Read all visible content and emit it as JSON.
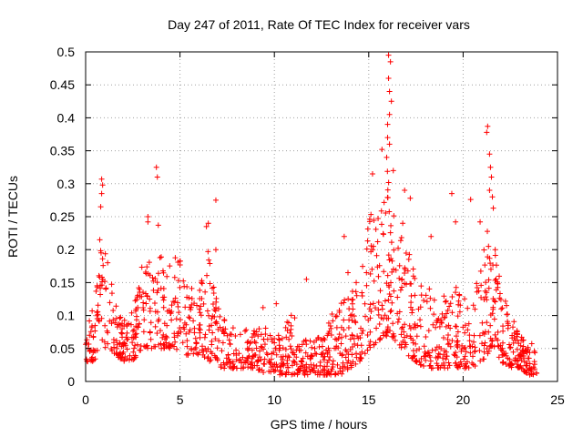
{
  "chart_data": {
    "type": "scatter",
    "title": "Day 247 of 2011, Rate Of TEC Index for receiver vars",
    "xlabel": "GPS time / hours",
    "ylabel": "ROTI / TECUs",
    "xlim": [
      0,
      25
    ],
    "ylim": [
      0,
      0.5
    ],
    "xticks": [
      0,
      5,
      10,
      15,
      20,
      25
    ],
    "yticks": [
      0,
      0.05,
      0.1,
      0.15,
      0.2,
      0.25,
      0.3,
      0.35,
      0.4,
      0.45,
      0.5
    ],
    "grid": true,
    "marker": "+",
    "color": "#ff0000",
    "series": [
      {
        "envelope": [
          [
            0.0,
            0.03,
            0.12
          ],
          [
            0.5,
            0.03,
            0.15
          ],
          [
            0.8,
            0.04,
            0.22
          ],
          [
            1.0,
            0.05,
            0.2
          ],
          [
            1.3,
            0.05,
            0.17
          ],
          [
            1.6,
            0.04,
            0.12
          ],
          [
            2.0,
            0.03,
            0.1
          ],
          [
            2.4,
            0.03,
            0.1
          ],
          [
            2.8,
            0.04,
            0.16
          ],
          [
            3.2,
            0.05,
            0.2
          ],
          [
            3.6,
            0.05,
            0.2
          ],
          [
            4.0,
            0.05,
            0.19
          ],
          [
            4.5,
            0.05,
            0.19
          ],
          [
            5.0,
            0.04,
            0.19
          ],
          [
            5.5,
            0.04,
            0.15
          ],
          [
            6.0,
            0.04,
            0.14
          ],
          [
            6.5,
            0.03,
            0.2
          ],
          [
            7.0,
            0.02,
            0.12
          ],
          [
            7.5,
            0.02,
            0.09
          ],
          [
            8.0,
            0.02,
            0.08
          ],
          [
            8.5,
            0.02,
            0.08
          ],
          [
            9.0,
            0.02,
            0.08
          ],
          [
            9.5,
            0.01,
            0.09
          ],
          [
            10.0,
            0.01,
            0.07
          ],
          [
            10.5,
            0.01,
            0.08
          ],
          [
            11.0,
            0.01,
            0.11
          ],
          [
            11.5,
            0.01,
            0.07
          ],
          [
            12.0,
            0.01,
            0.06
          ],
          [
            12.5,
            0.01,
            0.07
          ],
          [
            13.0,
            0.01,
            0.1
          ],
          [
            13.5,
            0.01,
            0.13
          ],
          [
            14.0,
            0.02,
            0.13
          ],
          [
            14.5,
            0.03,
            0.18
          ],
          [
            15.0,
            0.05,
            0.25
          ],
          [
            15.5,
            0.06,
            0.27
          ],
          [
            16.0,
            0.07,
            0.32
          ],
          [
            16.5,
            0.06,
            0.25
          ],
          [
            17.0,
            0.04,
            0.21
          ],
          [
            17.5,
            0.03,
            0.16
          ],
          [
            18.0,
            0.02,
            0.15
          ],
          [
            18.5,
            0.02,
            0.13
          ],
          [
            19.0,
            0.02,
            0.13
          ],
          [
            19.5,
            0.02,
            0.15
          ],
          [
            20.0,
            0.02,
            0.13
          ],
          [
            20.5,
            0.02,
            0.12
          ],
          [
            21.0,
            0.03,
            0.2
          ],
          [
            21.5,
            0.05,
            0.25
          ],
          [
            22.0,
            0.03,
            0.15
          ],
          [
            22.5,
            0.02,
            0.11
          ],
          [
            23.0,
            0.02,
            0.07
          ],
          [
            23.5,
            0.01,
            0.06
          ],
          [
            23.9,
            0.01,
            0.06
          ]
        ],
        "outliers": [
          [
            0.85,
            0.307
          ],
          [
            0.85,
            0.285
          ],
          [
            0.8,
            0.265
          ],
          [
            0.9,
            0.298
          ],
          [
            0.75,
            0.215
          ],
          [
            3.75,
            0.325
          ],
          [
            3.8,
            0.31
          ],
          [
            3.85,
            0.237
          ],
          [
            3.3,
            0.25
          ],
          [
            3.3,
            0.242
          ],
          [
            6.5,
            0.24
          ],
          [
            6.9,
            0.275
          ],
          [
            6.9,
            0.2
          ],
          [
            6.4,
            0.235
          ],
          [
            15.7,
            0.352
          ],
          [
            16.0,
            0.37
          ],
          [
            16.1,
            0.36
          ],
          [
            16.05,
            0.495
          ],
          [
            16.15,
            0.485
          ],
          [
            16.05,
            0.46
          ],
          [
            16.1,
            0.44
          ],
          [
            16.2,
            0.425
          ],
          [
            16.1,
            0.405
          ],
          [
            16.0,
            0.39
          ],
          [
            15.95,
            0.34
          ],
          [
            16.3,
            0.32
          ],
          [
            15.2,
            0.315
          ],
          [
            16.9,
            0.29
          ],
          [
            17.2,
            0.278
          ],
          [
            16.8,
            0.24
          ],
          [
            18.3,
            0.22
          ],
          [
            19.6,
            0.242
          ],
          [
            19.4,
            0.285
          ],
          [
            20.4,
            0.276
          ],
          [
            21.3,
            0.387
          ],
          [
            21.25,
            0.378
          ],
          [
            21.4,
            0.345
          ],
          [
            21.45,
            0.325
          ],
          [
            21.5,
            0.31
          ],
          [
            21.4,
            0.29
          ],
          [
            21.55,
            0.28
          ],
          [
            21.6,
            0.263
          ],
          [
            20.9,
            0.242
          ],
          [
            21.7,
            0.2
          ],
          [
            11.7,
            0.155
          ],
          [
            13.7,
            0.22
          ],
          [
            13.9,
            0.165
          ],
          [
            10.1,
            0.118
          ],
          [
            9.4,
            0.112
          ]
        ]
      }
    ]
  }
}
